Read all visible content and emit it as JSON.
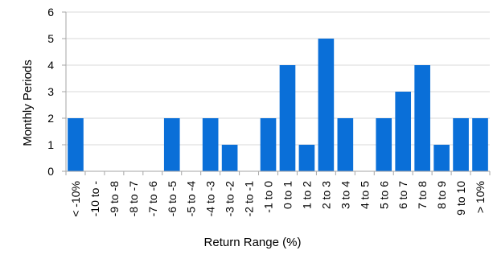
{
  "chart_data": {
    "type": "bar",
    "title": "",
    "xlabel": "Return Range (%)",
    "ylabel": "Monthly Periods",
    "ylim": [
      0,
      6
    ],
    "yticks": [
      0,
      1,
      2,
      3,
      4,
      5,
      6
    ],
    "grid": true,
    "legend": "none",
    "bar_color": "#0a6fd8",
    "grid_color": "#d9d9d9",
    "axis_color": "#a6a6a6",
    "categories": [
      "< -10%",
      "-10 to -",
      "-9 to -8",
      "-8 to -7",
      "-7 to -6",
      "-6 to -5",
      "-5 to -4",
      "-4 to -3",
      "-3 to -2",
      "-2 to -1",
      "-1 to 0",
      "0 to 1",
      "1 to 2",
      "2 to 3",
      "3 to 4",
      "4 to 5",
      "5 to 6",
      "6 to 7",
      "7 to 8",
      "8 to 9",
      "9 to 10",
      "> 10%"
    ],
    "values": [
      2,
      0,
      0,
      0,
      0,
      2,
      0,
      2,
      1,
      0,
      2,
      4,
      1,
      5,
      2,
      0,
      2,
      3,
      4,
      1,
      2,
      2
    ]
  }
}
